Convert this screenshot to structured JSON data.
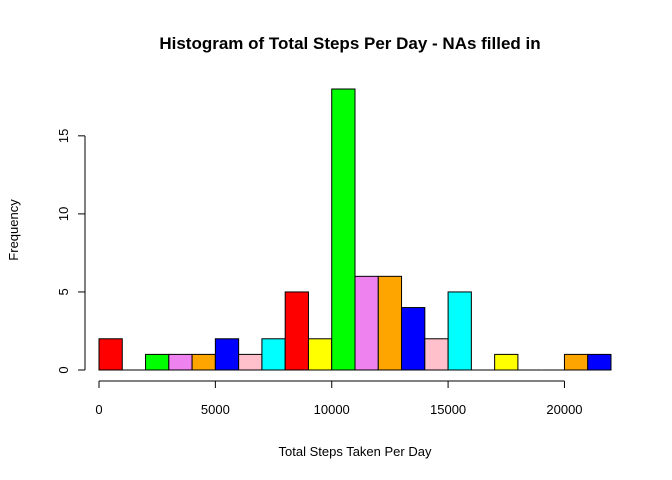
{
  "chart_data": {
    "type": "bar",
    "title": "Histogram of Total Steps Per Day - NAs filled in",
    "xlabel": "Total Steps Taken Per Day",
    "ylabel": "Frequency",
    "bin_width": 1000,
    "bins": [
      {
        "start": 0,
        "end": 1000,
        "count": 2,
        "color": "#ff0000"
      },
      {
        "start": 1000,
        "end": 2000,
        "count": 0,
        "color": "#ffff00"
      },
      {
        "start": 2000,
        "end": 3000,
        "count": 1,
        "color": "#00ff00"
      },
      {
        "start": 3000,
        "end": 4000,
        "count": 1,
        "color": "#ee82ee"
      },
      {
        "start": 4000,
        "end": 5000,
        "count": 1,
        "color": "#ffa500"
      },
      {
        "start": 5000,
        "end": 6000,
        "count": 2,
        "color": "#0000ff"
      },
      {
        "start": 6000,
        "end": 7000,
        "count": 1,
        "color": "#ffc0cb"
      },
      {
        "start": 7000,
        "end": 8000,
        "count": 2,
        "color": "#00ffff"
      },
      {
        "start": 8000,
        "end": 9000,
        "count": 5,
        "color": "#ff0000"
      },
      {
        "start": 9000,
        "end": 10000,
        "count": 2,
        "color": "#ffff00"
      },
      {
        "start": 10000,
        "end": 11000,
        "count": 18,
        "color": "#00ff00"
      },
      {
        "start": 11000,
        "end": 12000,
        "count": 6,
        "color": "#ee82ee"
      },
      {
        "start": 12000,
        "end": 13000,
        "count": 6,
        "color": "#ffa500"
      },
      {
        "start": 13000,
        "end": 14000,
        "count": 4,
        "color": "#0000ff"
      },
      {
        "start": 14000,
        "end": 15000,
        "count": 2,
        "color": "#ffc0cb"
      },
      {
        "start": 15000,
        "end": 16000,
        "count": 5,
        "color": "#00ffff"
      },
      {
        "start": 16000,
        "end": 17000,
        "count": 0,
        "color": "#ff0000"
      },
      {
        "start": 17000,
        "end": 18000,
        "count": 1,
        "color": "#ffff00"
      },
      {
        "start": 18000,
        "end": 19000,
        "count": 0,
        "color": "#00ff00"
      },
      {
        "start": 19000,
        "end": 20000,
        "count": 0,
        "color": "#ee82ee"
      },
      {
        "start": 20000,
        "end": 21000,
        "count": 1,
        "color": "#ffa500"
      },
      {
        "start": 21000,
        "end": 22000,
        "count": 1,
        "color": "#0000ff"
      }
    ],
    "xlim": [
      0,
      22000
    ],
    "ylim": [
      0,
      18
    ],
    "x_ticks": [
      0,
      5000,
      10000,
      15000,
      20000
    ],
    "x_tick_labels": [
      "0",
      "5000",
      "10000",
      "15000",
      "20000"
    ],
    "y_ticks": [
      0,
      5,
      10,
      15
    ],
    "y_tick_labels": [
      "0",
      "5",
      "10",
      "15"
    ],
    "grid": false,
    "legend": "none"
  }
}
